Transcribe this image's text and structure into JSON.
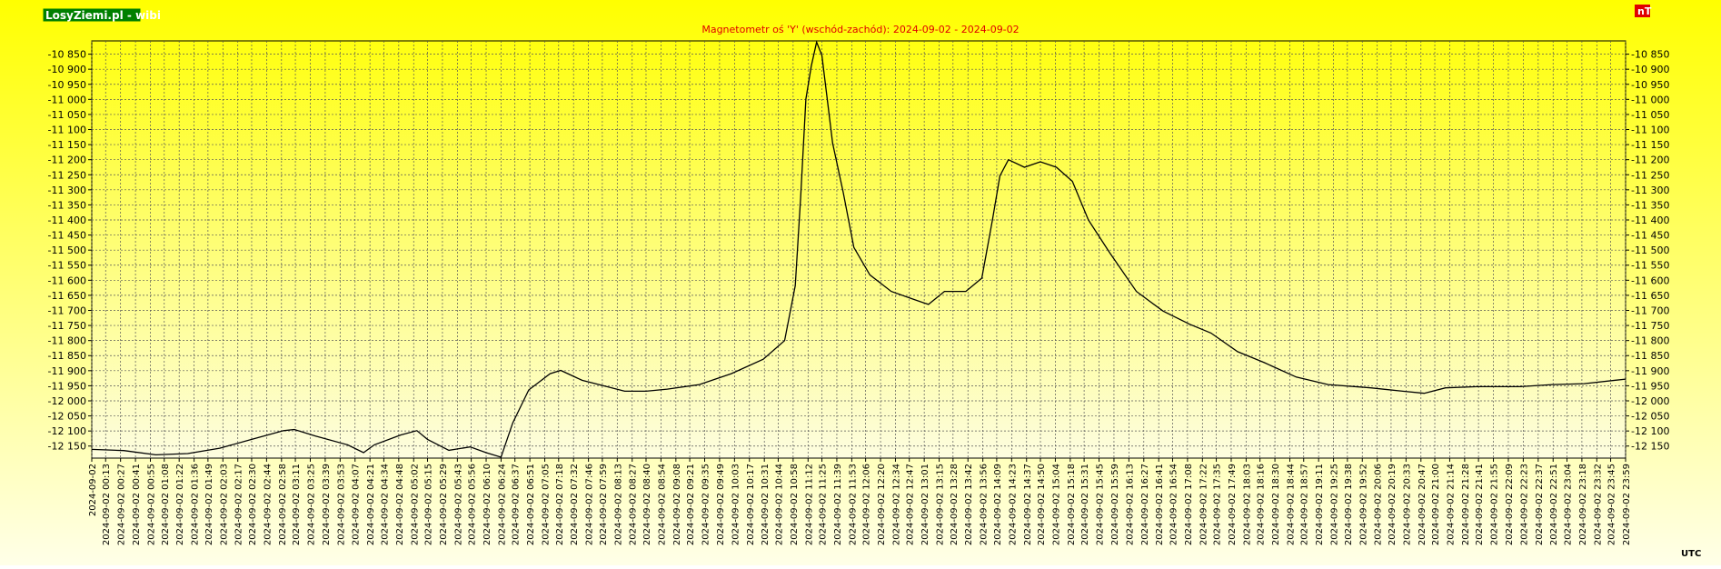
{
  "chart_data": {
    "type": "line",
    "title": "Magnetometr oś 'Y' (wschód-zachód): 2024-09-02 - 2024-09-02",
    "brand": "LosyZiemi.pl - wibi",
    "unit": "nT",
    "timezone": "UTC",
    "color": "#000000",
    "grid": true,
    "ylim": [
      -12190,
      -10806
    ],
    "yticks": [
      {
        "value": -10850,
        "label": "-10 850"
      },
      {
        "value": -10900,
        "label": "-10 900"
      },
      {
        "value": -10950,
        "label": "-10 950"
      },
      {
        "value": -11000,
        "label": "-11 000"
      },
      {
        "value": -11050,
        "label": "-11 050"
      },
      {
        "value": -11100,
        "label": "-11 100"
      },
      {
        "value": -11150,
        "label": "-11 150"
      },
      {
        "value": -11200,
        "label": "-11 200"
      },
      {
        "value": -11250,
        "label": "-11 250"
      },
      {
        "value": -11300,
        "label": "-11 300"
      },
      {
        "value": -11350,
        "label": "-11 350"
      },
      {
        "value": -11400,
        "label": "-11 400"
      },
      {
        "value": -11450,
        "label": "-11 450"
      },
      {
        "value": -11500,
        "label": "-11 500"
      },
      {
        "value": -11550,
        "label": "-11 550"
      },
      {
        "value": -11600,
        "label": "-11 600"
      },
      {
        "value": -11650,
        "label": "-11 650"
      },
      {
        "value": -11700,
        "label": "-11 700"
      },
      {
        "value": -11750,
        "label": "-11 750"
      },
      {
        "value": -11800,
        "label": "-11 800"
      },
      {
        "value": -11850,
        "label": "-11 850"
      },
      {
        "value": -11900,
        "label": "-11 900"
      },
      {
        "value": -11950,
        "label": "-11 950"
      },
      {
        "value": -12000,
        "label": "-12 000"
      },
      {
        "value": -12050,
        "label": "-12 050"
      },
      {
        "value": -12100,
        "label": "-12 100"
      },
      {
        "value": -12150,
        "label": "-12 150"
      }
    ],
    "xlim": [
      "2024-09-02 00:00",
      "2024-09-02 23:59"
    ],
    "xticks": [
      "2024-09-02",
      "2024-09-02 00:13",
      "2024-09-02 00:27",
      "2024-09-02 00:41",
      "2024-09-02 00:55",
      "2024-09-02 01:08",
      "2024-09-02 01:22",
      "2024-09-02 01:36",
      "2024-09-02 01:49",
      "2024-09-02 02:03",
      "2024-09-02 02:17",
      "2024-09-02 02:30",
      "2024-09-02 02:44",
      "2024-09-02 02:58",
      "2024-09-02 03:11",
      "2024-09-02 03:25",
      "2024-09-02 03:39",
      "2024-09-02 03:53",
      "2024-09-02 04:07",
      "2024-09-02 04:21",
      "2024-09-02 04:34",
      "2024-09-02 04:48",
      "2024-09-02 05:02",
      "2024-09-02 05:15",
      "2024-09-02 05:29",
      "2024-09-02 05:43",
      "2024-09-02 05:56",
      "2024-09-02 06:10",
      "2024-09-02 06:24",
      "2024-09-02 06:37",
      "2024-09-02 06:51",
      "2024-09-02 07:05",
      "2024-09-02 07:18",
      "2024-09-02 07:32",
      "2024-09-02 07:46",
      "2024-09-02 07:59",
      "2024-09-02 08:13",
      "2024-09-02 08:27",
      "2024-09-02 08:40",
      "2024-09-02 08:54",
      "2024-09-02 09:08",
      "2024-09-02 09:21",
      "2024-09-02 09:35",
      "2024-09-02 09:49",
      "2024-09-02 10:03",
      "2024-09-02 10:17",
      "2024-09-02 10:31",
      "2024-09-02 10:44",
      "2024-09-02 10:58",
      "2024-09-02 11:12",
      "2024-09-02 11:25",
      "2024-09-02 11:39",
      "2024-09-02 11:53",
      "2024-09-02 12:06",
      "2024-09-02 12:20",
      "2024-09-02 12:34",
      "2024-09-02 12:47",
      "2024-09-02 13:01",
      "2024-09-02 13:15",
      "2024-09-02 13:28",
      "2024-09-02 13:42",
      "2024-09-02 13:56",
      "2024-09-02 14:09",
      "2024-09-02 14:23",
      "2024-09-02 14:37",
      "2024-09-02 14:50",
      "2024-09-02 15:04",
      "2024-09-02 15:18",
      "2024-09-02 15:31",
      "2024-09-02 15:45",
      "2024-09-02 15:59",
      "2024-09-02 16:13",
      "2024-09-02 16:27",
      "2024-09-02 16:41",
      "2024-09-02 16:54",
      "2024-09-02 17:08",
      "2024-09-02 17:22",
      "2024-09-02 17:35",
      "2024-09-02 17:49",
      "2024-09-02 18:03",
      "2024-09-02 18:16",
      "2024-09-02 18:30",
      "2024-09-02 18:44",
      "2024-09-02 18:57",
      "2024-09-02 19:11",
      "2024-09-02 19:25",
      "2024-09-02 19:38",
      "2024-09-02 19:52",
      "2024-09-02 20:06",
      "2024-09-02 20:19",
      "2024-09-02 20:33",
      "2024-09-02 20:47",
      "2024-09-02 21:00",
      "2024-09-02 21:14",
      "2024-09-02 21:28",
      "2024-09-02 21:41",
      "2024-09-02 21:55",
      "2024-09-02 22:09",
      "2024-09-02 22:23",
      "2024-09-02 22:37",
      "2024-09-02 22:51",
      "2024-09-02 23:04",
      "2024-09-02 23:18",
      "2024-09-02 23:32",
      "2024-09-02 23:45",
      "2024-09-02 23:59"
    ],
    "x": [
      "2024-09-02 00:00",
      "2024-09-02 00:30",
      "2024-09-02 01:00",
      "2024-09-02 01:30",
      "2024-09-02 02:00",
      "2024-09-02 02:30",
      "2024-09-02 03:00",
      "2024-09-02 03:10",
      "2024-09-02 03:30",
      "2024-09-02 04:00",
      "2024-09-02 04:15",
      "2024-09-02 04:25",
      "2024-09-02 04:50",
      "2024-09-02 05:05",
      "2024-09-02 05:15",
      "2024-09-02 05:35",
      "2024-09-02 05:55",
      "2024-09-02 06:10",
      "2024-09-02 06:24",
      "2024-09-02 06:35",
      "2024-09-02 06:50",
      "2024-09-02 07:10",
      "2024-09-02 07:20",
      "2024-09-02 07:40",
      "2024-09-02 08:00",
      "2024-09-02 08:20",
      "2024-09-02 08:40",
      "2024-09-02 09:00",
      "2024-09-02 09:30",
      "2024-09-02 10:00",
      "2024-09-02 10:30",
      "2024-09-02 10:50",
      "2024-09-02 11:00",
      "2024-09-02 11:05",
      "2024-09-02 11:10",
      "2024-09-02 11:15",
      "2024-09-02 11:20",
      "2024-09-02 11:25",
      "2024-09-02 11:30",
      "2024-09-02 11:35",
      "2024-09-02 11:45",
      "2024-09-02 11:55",
      "2024-09-02 12:10",
      "2024-09-02 12:30",
      "2024-09-02 12:50",
      "2024-09-02 13:05",
      "2024-09-02 13:20",
      "2024-09-02 13:40",
      "2024-09-02 13:55",
      "2024-09-02 14:05",
      "2024-09-02 14:12",
      "2024-09-02 14:20",
      "2024-09-02 14:35",
      "2024-09-02 14:50",
      "2024-09-02 15:05",
      "2024-09-02 15:20",
      "2024-09-02 15:35",
      "2024-09-02 15:55",
      "2024-09-02 16:20",
      "2024-09-02 16:45",
      "2024-09-02 17:10",
      "2024-09-02 17:30",
      "2024-09-02 17:55",
      "2024-09-02 18:20",
      "2024-09-02 18:50",
      "2024-09-02 19:20",
      "2024-09-02 20:00",
      "2024-09-02 20:30",
      "2024-09-02 20:50",
      "2024-09-02 21:10",
      "2024-09-02 21:40",
      "2024-09-02 22:20",
      "2024-09-02 22:50",
      "2024-09-02 23:20",
      "2024-09-02 23:59"
    ],
    "values": [
      -12161,
      -12165,
      -12179,
      -12175,
      -12157,
      -12128,
      -12099,
      -12095,
      -12117,
      -12146,
      -12172,
      -12146,
      -12113,
      -12099,
      -12128,
      -12164,
      -12153,
      -12172,
      -12187,
      -12073,
      -11964,
      -11910,
      -11899,
      -11932,
      -11950,
      -11968,
      -11968,
      -11961,
      -11946,
      -11910,
      -11862,
      -11800,
      -11618,
      -11327,
      -10999,
      -10890,
      -10810,
      -10854,
      -10999,
      -11145,
      -11309,
      -11491,
      -11582,
      -11637,
      -11662,
      -11680,
      -11637,
      -11637,
      -11593,
      -11400,
      -11254,
      -11200,
      -11225,
      -11207,
      -11225,
      -11272,
      -11400,
      -11509,
      -11637,
      -11702,
      -11746,
      -11775,
      -11837,
      -11873,
      -11921,
      -11946,
      -11957,
      -11968,
      -11975,
      -11957,
      -11953,
      -11953,
      -11946,
      -11943,
      -11928
    ]
  }
}
